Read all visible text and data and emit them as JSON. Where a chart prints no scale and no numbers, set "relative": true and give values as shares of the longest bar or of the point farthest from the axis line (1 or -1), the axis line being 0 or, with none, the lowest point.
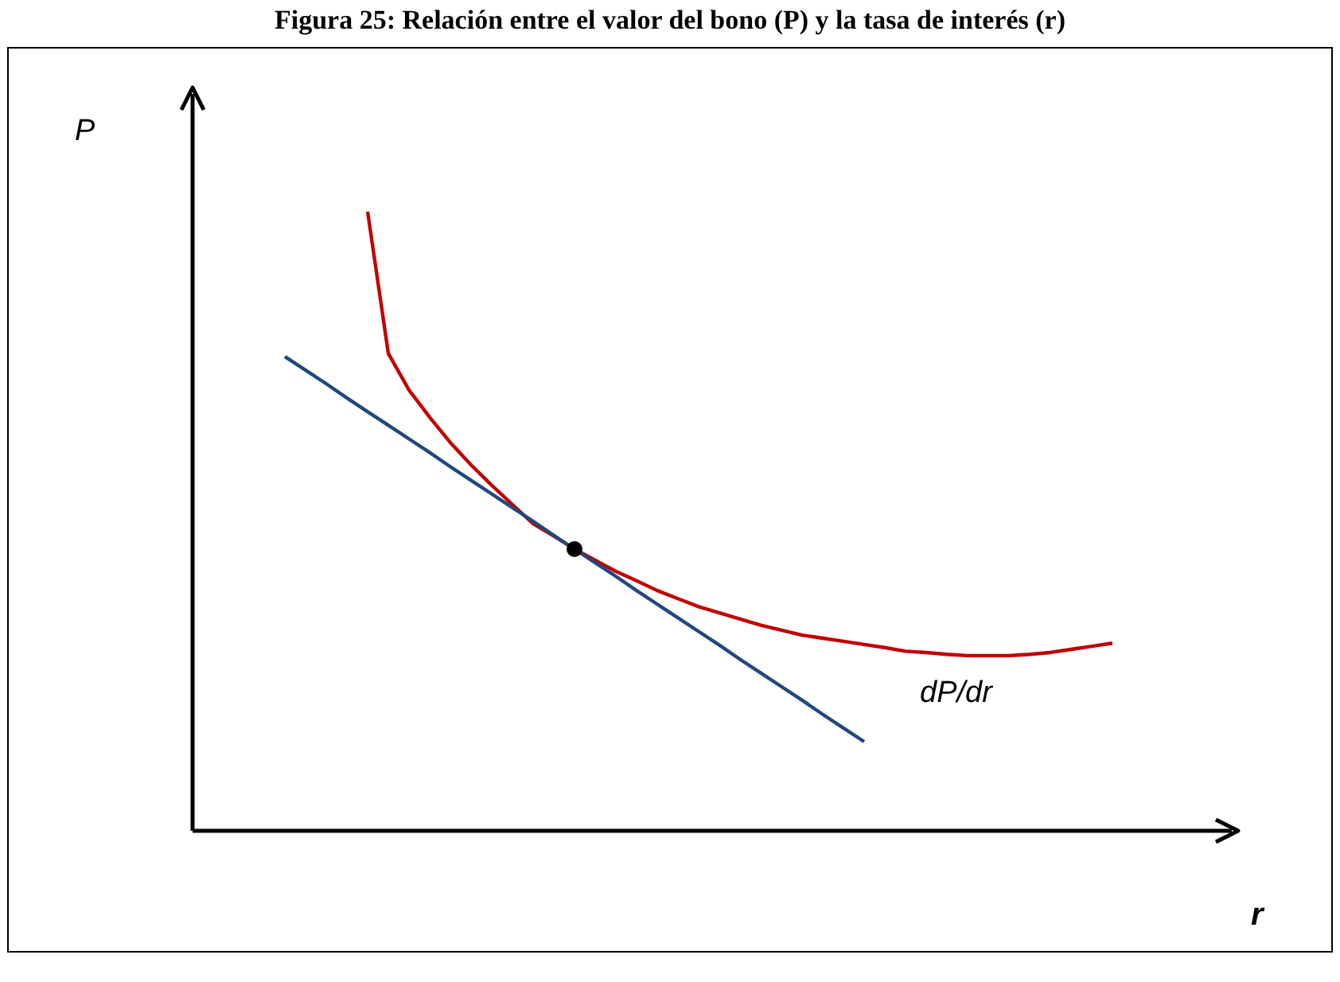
{
  "chart_data": {
    "type": "line",
    "title": "Figura 25: Relación entre el valor del bono (P) y la tasa de interés (r)",
    "xlabel": "r",
    "ylabel": "P",
    "relative": true,
    "categories": [
      null,
      null,
      null,
      null,
      null,
      null,
      null,
      null,
      null,
      null,
      null,
      null,
      null,
      null,
      null,
      null,
      null,
      null,
      null,
      null,
      null,
      null,
      null,
      null,
      null,
      null,
      null,
      null,
      null,
      null,
      null,
      null,
      null,
      null,
      null,
      null,
      null,
      null,
      null,
      null,
      null,
      null,
      null,
      null,
      null
    ],
    "series": [
      {
        "color": "#c00000",
        "values": [
          null,
          null,
          null,
          null,
          null,
          null,
          null,
          null,
          1.0,
          0.771,
          0.712,
          0.668,
          0.627,
          0.591,
          0.558,
          0.527,
          0.496,
          0.476,
          0.455,
          0.437,
          0.419,
          0.404,
          0.388,
          0.375,
          0.362,
          0.352,
          0.342,
          0.332,
          0.324,
          0.316,
          0.311,
          0.306,
          0.301,
          0.296,
          0.29,
          0.288,
          0.285,
          0.283,
          0.283,
          0.283,
          0.285,
          0.288,
          0.293,
          0.298,
          0.303
        ]
      },
      {
        "color": "#1f497d",
        "values": [
          null,
          null,
          null,
          null,
          0.766,
          0.744,
          0.722,
          0.699,
          0.677,
          0.655,
          0.633,
          0.611,
          0.588,
          0.566,
          0.544,
          0.522,
          0.5,
          0.477,
          0.455,
          0.433,
          0.411,
          0.388,
          0.366,
          0.344,
          0.322,
          0.3,
          0.277,
          0.255,
          0.233,
          0.211,
          0.188,
          0.166,
          0.144,
          null,
          null,
          null,
          null,
          null,
          null,
          null,
          null,
          null,
          null,
          null,
          null
        ]
      }
    ],
    "annotations": [
      "dP/dr"
    ],
    "line_style": "solid",
    "grid": false,
    "legend": false
  }
}
